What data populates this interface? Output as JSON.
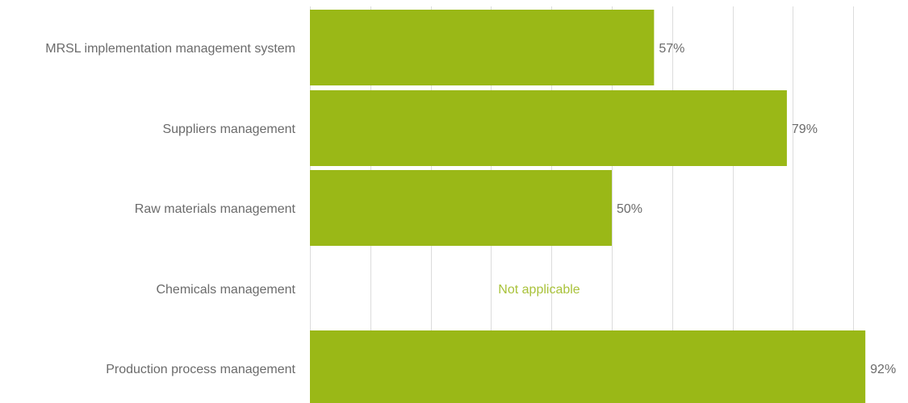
{
  "chart_data": {
    "type": "bar",
    "orientation": "horizontal",
    "categories": [
      "MRSL implementation management system",
      "Suppliers management",
      "Raw materials management",
      "Chemicals management",
      "Production process management"
    ],
    "values": [
      57,
      79,
      50,
      null,
      92
    ],
    "value_labels": [
      "57%",
      "79%",
      "50%",
      null,
      "92%"
    ],
    "na_labels": [
      null,
      null,
      null,
      "Not applicable",
      null
    ],
    "xlim": [
      0,
      100
    ],
    "grid": true,
    "bar_color": "#9ab817",
    "na_color": "#a9c23a",
    "label_color": "#6b6b6b",
    "title": "",
    "xlabel": "",
    "ylabel": ""
  }
}
